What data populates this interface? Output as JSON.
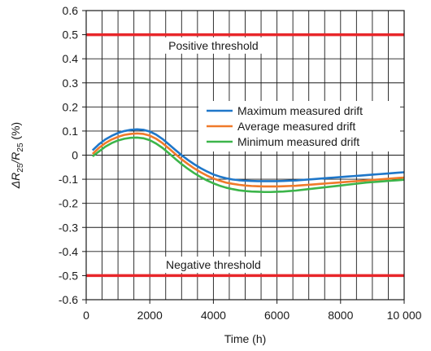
{
  "chart_data": {
    "type": "line",
    "xlabel": "Time (h)",
    "ylabel": {
      "delta": "ΔR",
      "sub1": "25",
      "slash": "/R",
      "sub2": "25",
      "unit": " (%)"
    },
    "xlim": [
      0,
      10000
    ],
    "ylim": [
      -0.6,
      0.6
    ],
    "x_ticks": [
      0,
      2000,
      4000,
      6000,
      8000,
      10000
    ],
    "x_tick_labels": [
      "0",
      "2000",
      "4000",
      "6000",
      "8000",
      "10 000"
    ],
    "y_ticks": [
      -0.6,
      -0.5,
      -0.4,
      -0.3,
      -0.2,
      -0.1,
      0,
      0.1,
      0.2,
      0.3,
      0.4,
      0.5,
      0.6
    ],
    "y_tick_labels": [
      "-0.6",
      "-0.5",
      "-0.4",
      "-0.3",
      "-0.2",
      "-0.1",
      "0",
      "0.1",
      "0.2",
      "0.3",
      "0.4",
      "0.5",
      "0.6"
    ],
    "x_minor_step": 500,
    "y_minor_step": 0.1,
    "grid": true,
    "legend_position": "right",
    "thresholds": [
      {
        "label": "Positive threshold",
        "value": 0.5,
        "color": "#e8262a"
      },
      {
        "label": "Negative threshold",
        "value": -0.5,
        "color": "#e8262a"
      }
    ],
    "series": [
      {
        "name": "Maximum measured drift",
        "color": "#1f77c9",
        "x": [
          200,
          400,
          600,
          800,
          1000,
          1200,
          1400,
          1600,
          1800,
          2000,
          2200,
          2400,
          2600,
          2800,
          3000,
          3200,
          3400,
          3600,
          3800,
          4000,
          4200,
          4400,
          4600,
          4800,
          5000,
          5200,
          5400,
          5600,
          5800,
          6000,
          6200,
          6400,
          6600,
          6800,
          7000,
          7200,
          7400,
          7600,
          7800,
          8000,
          8200,
          8400,
          8600,
          8800,
          9000,
          9200,
          9400,
          9600,
          9800,
          10000
        ],
        "values": [
          0.02,
          0.045,
          0.065,
          0.08,
          0.092,
          0.1,
          0.105,
          0.107,
          0.105,
          0.098,
          0.085,
          0.067,
          0.045,
          0.022,
          0.0,
          -0.02,
          -0.038,
          -0.054,
          -0.068,
          -0.08,
          -0.089,
          -0.096,
          -0.101,
          -0.104,
          -0.106,
          -0.107,
          -0.108,
          -0.108,
          -0.108,
          -0.108,
          -0.107,
          -0.106,
          -0.105,
          -0.103,
          -0.101,
          -0.099,
          -0.097,
          -0.095,
          -0.093,
          -0.091,
          -0.089,
          -0.087,
          -0.085,
          -0.083,
          -0.081,
          -0.079,
          -0.077,
          -0.075,
          -0.073,
          -0.071
        ]
      },
      {
        "name": "Average measured drift",
        "color": "#f07a2a",
        "x": [
          200,
          400,
          600,
          800,
          1000,
          1200,
          1400,
          1600,
          1800,
          2000,
          2200,
          2400,
          2600,
          2800,
          3000,
          3200,
          3400,
          3600,
          3800,
          4000,
          4200,
          4400,
          4600,
          4800,
          5000,
          5200,
          5400,
          5600,
          5800,
          6000,
          6200,
          6400,
          6600,
          6800,
          7000,
          7200,
          7400,
          7600,
          7800,
          8000,
          8200,
          8400,
          8600,
          8800,
          9000,
          9200,
          9400,
          9600,
          9800,
          10000
        ],
        "values": [
          0.005,
          0.03,
          0.05,
          0.065,
          0.076,
          0.084,
          0.088,
          0.09,
          0.088,
          0.081,
          0.068,
          0.05,
          0.028,
          0.005,
          -0.017,
          -0.037,
          -0.055,
          -0.071,
          -0.085,
          -0.097,
          -0.106,
          -0.114,
          -0.119,
          -0.123,
          -0.126,
          -0.128,
          -0.129,
          -0.13,
          -0.13,
          -0.13,
          -0.129,
          -0.128,
          -0.127,
          -0.125,
          -0.123,
          -0.121,
          -0.119,
          -0.117,
          -0.115,
          -0.113,
          -0.111,
          -0.109,
          -0.107,
          -0.105,
          -0.103,
          -0.101,
          -0.099,
          -0.097,
          -0.095,
          -0.093
        ]
      },
      {
        "name": "Minimum measured drift",
        "color": "#3cb54a",
        "x": [
          200,
          400,
          600,
          800,
          1000,
          1200,
          1400,
          1600,
          1800,
          2000,
          2200,
          2400,
          2600,
          2800,
          3000,
          3200,
          3400,
          3600,
          3800,
          4000,
          4200,
          4400,
          4600,
          4800,
          5000,
          5200,
          5400,
          5600,
          5800,
          6000,
          6200,
          6400,
          6600,
          6800,
          7000,
          7200,
          7400,
          7600,
          7800,
          8000,
          8200,
          8400,
          8600,
          8800,
          9000,
          9200,
          9400,
          9600,
          9800,
          10000
        ],
        "values": [
          -0.005,
          0.015,
          0.035,
          0.05,
          0.061,
          0.068,
          0.072,
          0.073,
          0.07,
          0.062,
          0.048,
          0.03,
          0.008,
          -0.015,
          -0.037,
          -0.057,
          -0.075,
          -0.091,
          -0.105,
          -0.117,
          -0.127,
          -0.135,
          -0.141,
          -0.146,
          -0.149,
          -0.151,
          -0.152,
          -0.153,
          -0.153,
          -0.152,
          -0.151,
          -0.149,
          -0.147,
          -0.144,
          -0.141,
          -0.138,
          -0.135,
          -0.132,
          -0.129,
          -0.126,
          -0.123,
          -0.12,
          -0.117,
          -0.114,
          -0.112,
          -0.11,
          -0.108,
          -0.106,
          -0.104,
          -0.102
        ]
      }
    ]
  }
}
